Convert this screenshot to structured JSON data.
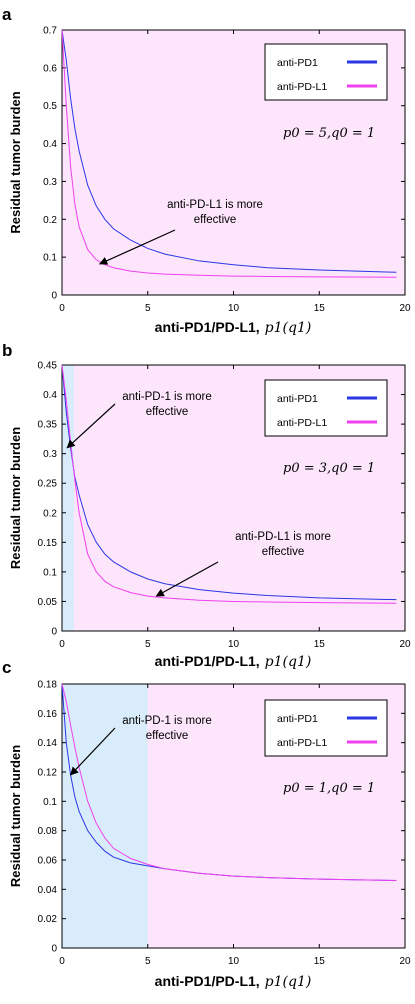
{
  "colors": {
    "anti_pd1": "#2a36e6",
    "anti_pdl1": "#f040f0",
    "pink_region": "#fde6fb",
    "blue_region": "#d8ecfb",
    "axis": "#000000"
  },
  "chart_data": [
    {
      "type": "line",
      "panel_label": "a",
      "xlabel": "anti-PD1/PD-L1,",
      "xlabel_math": "p1(q1)",
      "ylabel": "Residual tumor burden",
      "xlim": [
        0,
        20
      ],
      "ylim": [
        0,
        0.7
      ],
      "xticks": [
        "0",
        "5",
        "10",
        "15",
        "20"
      ],
      "yticks": [
        "0",
        "0.1",
        "0.2",
        "0.3",
        "0.4",
        "0.5",
        "0.6",
        "0.7"
      ],
      "ytick_values": [
        0,
        0.1,
        0.2,
        0.3,
        0.4,
        0.5,
        0.6,
        0.7
      ],
      "regions": [
        {
          "color_key": "pink_region",
          "x": [
            0,
            20
          ]
        }
      ],
      "legend": {
        "placement": "top-right"
      },
      "param_text": "p0 = 5,q0 = 1",
      "annotations": [
        {
          "lines": [
            "anti-PD-L1 is more",
            "effective"
          ],
          "arrow_to": [
            2.2,
            0.082
          ]
        }
      ],
      "x": [
        0,
        0.25,
        0.5,
        0.75,
        1,
        1.5,
        2,
        2.5,
        3,
        4,
        5,
        6,
        8,
        10,
        12,
        15,
        19.5
      ],
      "series": [
        {
          "name": "anti-PD1",
          "color_key": "anti_pd1",
          "values": [
            0.7,
            0.62,
            0.52,
            0.44,
            0.38,
            0.29,
            0.235,
            0.2,
            0.175,
            0.145,
            0.123,
            0.108,
            0.09,
            0.08,
            0.072,
            0.066,
            0.06
          ]
        },
        {
          "name": "anti-PD-L1",
          "color_key": "anti_pdl1",
          "values": [
            0.7,
            0.5,
            0.34,
            0.24,
            0.18,
            0.12,
            0.093,
            0.08,
            0.072,
            0.063,
            0.058,
            0.055,
            0.052,
            0.05,
            0.049,
            0.048,
            0.047
          ]
        }
      ]
    },
    {
      "type": "line",
      "panel_label": "b",
      "xlabel": "anti-PD1/PD-L1,",
      "xlabel_math": "p1(q1)",
      "ylabel": "Residual tumor burden",
      "xlim": [
        0,
        20
      ],
      "ylim": [
        0,
        0.45
      ],
      "xticks": [
        "0",
        "5",
        "10",
        "15",
        "20"
      ],
      "yticks": [
        "0",
        "0.05",
        "0.1",
        "0.15",
        "0.2",
        "0.25",
        "0.3",
        "0.35",
        "0.4",
        "0.45"
      ],
      "ytick_values": [
        0,
        0.05,
        0.1,
        0.15,
        0.2,
        0.25,
        0.3,
        0.35,
        0.4,
        0.45
      ],
      "regions": [
        {
          "color_key": "blue_region",
          "x": [
            0,
            0.7
          ]
        },
        {
          "color_key": "pink_region",
          "x": [
            0.7,
            20
          ]
        }
      ],
      "legend": {
        "placement": "top-right"
      },
      "param_text": "p0 = 3,q0 = 1",
      "annotations": [
        {
          "lines": [
            "anti-PD-1 is more",
            "effective"
          ],
          "arrow_to": [
            0.3,
            0.31
          ]
        },
        {
          "lines": [
            "anti-PD-L1 is more",
            "effective"
          ],
          "arrow_to": [
            5.5,
            0.059
          ]
        }
      ],
      "x": [
        0,
        0.25,
        0.5,
        0.75,
        1,
        1.5,
        2,
        2.5,
        3,
        4,
        5,
        6,
        8,
        10,
        12,
        15,
        19.5
      ],
      "series": [
        {
          "name": "anti-PD1",
          "color_key": "anti_pd1",
          "values": [
            0.45,
            0.37,
            0.31,
            0.26,
            0.23,
            0.18,
            0.15,
            0.13,
            0.117,
            0.1,
            0.088,
            0.08,
            0.07,
            0.064,
            0.06,
            0.056,
            0.053
          ]
        },
        {
          "name": "anti-PD-L1",
          "color_key": "anti_pdl1",
          "values": [
            0.45,
            0.39,
            0.32,
            0.255,
            0.2,
            0.13,
            0.1,
            0.084,
            0.075,
            0.065,
            0.059,
            0.056,
            0.052,
            0.05,
            0.049,
            0.048,
            0.047
          ]
        }
      ]
    },
    {
      "type": "line",
      "panel_label": "c",
      "xlabel": "anti-PD1/PD-L1,",
      "xlabel_math": "p1(q1)",
      "ylabel": "Residual tumor burden",
      "xlim": [
        0,
        20
      ],
      "ylim": [
        0,
        0.18
      ],
      "xticks": [
        "0",
        "5",
        "10",
        "15",
        "20"
      ],
      "yticks": [
        "0",
        "0.02",
        "0.04",
        "0.06",
        "0.08",
        "0.1",
        "0.12",
        "0.14",
        "0.16",
        "0.18"
      ],
      "ytick_values": [
        0,
        0.02,
        0.04,
        0.06,
        0.08,
        0.1,
        0.12,
        0.14,
        0.16,
        0.18
      ],
      "regions": [
        {
          "color_key": "blue_region",
          "x": [
            0,
            5
          ]
        },
        {
          "color_key": "pink_region",
          "x": [
            5,
            20
          ]
        }
      ],
      "legend": {
        "placement": "top-right"
      },
      "param_text": "p0 = 1,q0 = 1",
      "annotations": [
        {
          "lines": [
            "anti-PD-1 is more",
            "effective"
          ],
          "arrow_to": [
            0.5,
            0.118
          ]
        }
      ],
      "x": [
        0,
        0.25,
        0.5,
        0.75,
        1,
        1.5,
        2,
        2.5,
        3,
        4,
        5,
        6,
        8,
        10,
        12,
        15,
        19.5
      ],
      "series": [
        {
          "name": "anti-PD1",
          "color_key": "anti_pd1",
          "values": [
            0.18,
            0.14,
            0.118,
            0.103,
            0.093,
            0.08,
            0.072,
            0.066,
            0.062,
            0.058,
            0.056,
            0.054,
            0.051,
            0.049,
            0.048,
            0.047,
            0.046
          ]
        },
        {
          "name": "anti-PD-L1",
          "color_key": "anti_pdl1",
          "values": [
            0.18,
            0.168,
            0.152,
            0.137,
            0.123,
            0.1,
            0.085,
            0.075,
            0.068,
            0.061,
            0.057,
            0.054,
            0.051,
            0.049,
            0.048,
            0.047,
            0.046
          ]
        }
      ]
    }
  ]
}
